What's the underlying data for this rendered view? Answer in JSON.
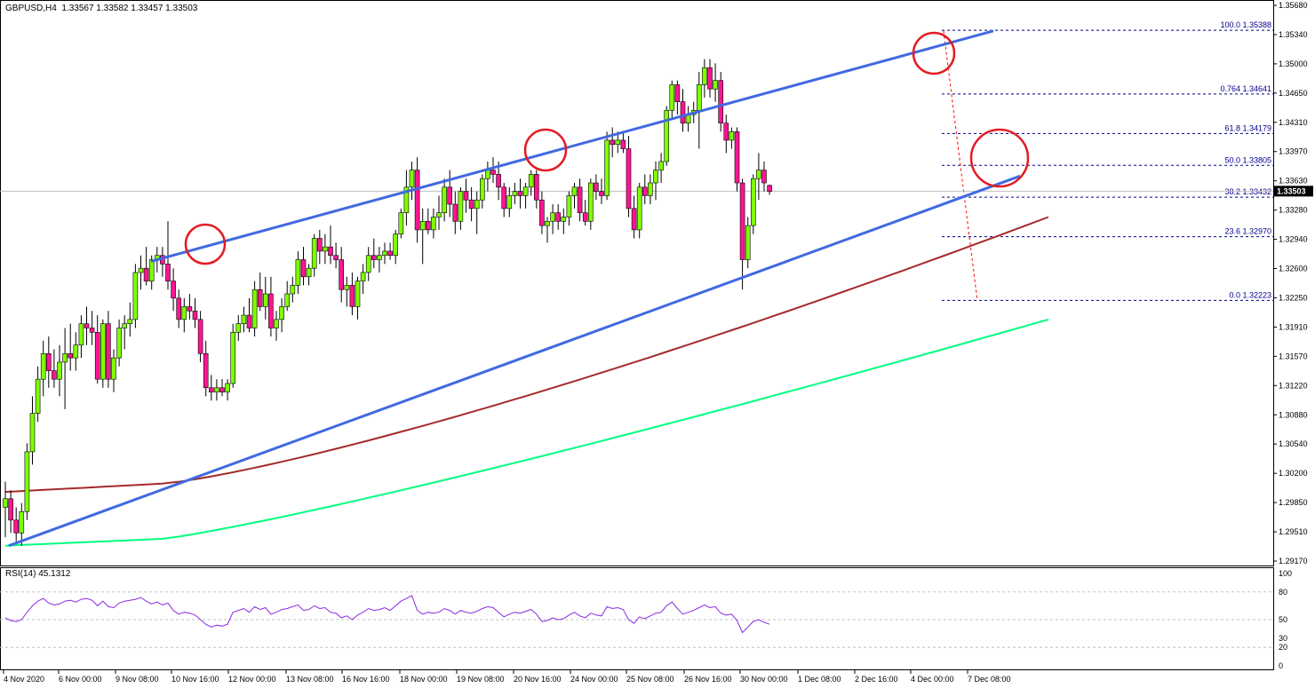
{
  "header": {
    "symbol": "GBPUSD,H4",
    "open": "1.33567",
    "high": "1.33582",
    "low": "1.33457",
    "close": "1.33503"
  },
  "rsi_panel": {
    "label": "RSI(14) 45.1312",
    "levels": [
      "100",
      "80",
      "50",
      "30",
      "20",
      "0"
    ]
  },
  "colors": {
    "bull": "#7fff00",
    "bear": "#ff1493",
    "channel": "#4169e1",
    "ma_fast": "#a52a2a",
    "ma_slow": "#00ff7f",
    "fib": "#00008b",
    "circle": "#e31b23",
    "rsi": "#8a2be2"
  },
  "chart_data": {
    "type": "candlestick",
    "symbol": "GBPUSD",
    "timeframe": "H4",
    "ylim": [
      1.2917,
      1.3568
    ],
    "y_ticks": [
      "1.35680",
      "1.35340",
      "1.35000",
      "1.34650",
      "1.34310",
      "1.33970",
      "1.33630",
      "1.33280",
      "1.32940",
      "1.32600",
      "1.32250",
      "1.31910",
      "1.31570",
      "1.31220",
      "1.30880",
      "1.30540",
      "1.30200",
      "1.29850",
      "1.29510",
      "1.29170"
    ],
    "current_price": "1.33503",
    "x_labels": [
      "4 Nov 2020",
      "6 Nov 00:00",
      "9 Nov 08:00",
      "10 Nov 16:00",
      "12 Nov 00:00",
      "13 Nov 08:00",
      "16 Nov 16:00",
      "18 Nov 00:00",
      "19 Nov 08:00",
      "20 Nov 16:00",
      "24 Nov 00:00",
      "25 Nov 08:00",
      "26 Nov 16:00",
      "30 Nov 00:00",
      "1 Dec 08:00",
      "2 Dec 16:00",
      "4 Dec 00:00",
      "7 Dec 08:00"
    ],
    "fibonacci": [
      {
        "label": "100.0 1.35388",
        "price": 1.35388
      },
      {
        "label": "0.764 1.34641",
        "price": 1.34641
      },
      {
        "label": "61.8 1.34179",
        "price": 1.34179
      },
      {
        "label": "50.0 1.33805",
        "price": 1.33805
      },
      {
        "label": "38.2 1.33432",
        "price": 1.33432
      },
      {
        "label": "23.6 1.32970",
        "price": 1.3297
      },
      {
        "label": "0.0 1.32223",
        "price": 1.32223
      }
    ],
    "candles": [
      [
        1.298,
        1.301,
        1.2945,
        1.299
      ],
      [
        1.299,
        1.3,
        1.295,
        1.2965
      ],
      [
        1.2965,
        1.298,
        1.294,
        1.295
      ],
      [
        1.295,
        1.2985,
        1.2935,
        1.2975
      ],
      [
        1.2975,
        1.3055,
        1.2965,
        1.3045
      ],
      [
        1.3045,
        1.311,
        1.303,
        1.309
      ],
      [
        1.309,
        1.3145,
        1.308,
        1.313
      ],
      [
        1.313,
        1.3175,
        1.311,
        1.316
      ],
      [
        1.316,
        1.318,
        1.312,
        1.314
      ],
      [
        1.314,
        1.3165,
        1.312,
        1.313
      ],
      [
        1.313,
        1.317,
        1.311,
        1.315
      ],
      [
        1.315,
        1.319,
        1.3095,
        1.316
      ],
      [
        1.316,
        1.3195,
        1.314,
        1.3155
      ],
      [
        1.3155,
        1.3185,
        1.314,
        1.317
      ],
      [
        1.317,
        1.3205,
        1.3155,
        1.3195
      ],
      [
        1.3195,
        1.3215,
        1.317,
        1.319
      ],
      [
        1.319,
        1.321,
        1.317,
        1.3185
      ],
      [
        1.3185,
        1.3205,
        1.3125,
        1.313
      ],
      [
        1.313,
        1.32,
        1.312,
        1.3195
      ],
      [
        1.3195,
        1.321,
        1.312,
        1.313
      ],
      [
        1.313,
        1.3165,
        1.3115,
        1.3155
      ],
      [
        1.3155,
        1.32,
        1.3145,
        1.319
      ],
      [
        1.319,
        1.3205,
        1.3165,
        1.3195
      ],
      [
        1.3195,
        1.322,
        1.318,
        1.32
      ],
      [
        1.32,
        1.3265,
        1.319,
        1.3255
      ],
      [
        1.3255,
        1.3275,
        1.3235,
        1.326
      ],
      [
        1.326,
        1.3285,
        1.324,
        1.3245
      ],
      [
        1.3245,
        1.3275,
        1.3235,
        1.327
      ],
      [
        1.327,
        1.3285,
        1.3255,
        1.3275
      ],
      [
        1.3275,
        1.3285,
        1.325,
        1.3265
      ],
      [
        1.3265,
        1.3315,
        1.3235,
        1.3245
      ],
      [
        1.3245,
        1.326,
        1.321,
        1.3225
      ],
      [
        1.3225,
        1.3235,
        1.319,
        1.32
      ],
      [
        1.32,
        1.3225,
        1.3185,
        1.3215
      ],
      [
        1.3215,
        1.323,
        1.32,
        1.321
      ],
      [
        1.321,
        1.3225,
        1.319,
        1.32
      ],
      [
        1.32,
        1.321,
        1.315,
        1.316
      ],
      [
        1.316,
        1.3175,
        1.311,
        1.312
      ],
      [
        1.312,
        1.3135,
        1.3105,
        1.3115
      ],
      [
        1.3115,
        1.313,
        1.3105,
        1.312
      ],
      [
        1.312,
        1.313,
        1.311,
        1.3115
      ],
      [
        1.3115,
        1.313,
        1.3105,
        1.3125
      ],
      [
        1.3125,
        1.3195,
        1.312,
        1.3185
      ],
      [
        1.3185,
        1.3205,
        1.3175,
        1.3195
      ],
      [
        1.3195,
        1.3215,
        1.3185,
        1.3205
      ],
      [
        1.3205,
        1.3225,
        1.3185,
        1.319
      ],
      [
        1.319,
        1.3245,
        1.318,
        1.3235
      ],
      [
        1.3235,
        1.3255,
        1.321,
        1.3215
      ],
      [
        1.3215,
        1.325,
        1.32,
        1.323
      ],
      [
        1.323,
        1.325,
        1.318,
        1.319
      ],
      [
        1.319,
        1.321,
        1.3175,
        1.32
      ],
      [
        1.32,
        1.3225,
        1.3185,
        1.3215
      ],
      [
        1.3215,
        1.3245,
        1.321,
        1.323
      ],
      [
        1.323,
        1.325,
        1.322,
        1.324
      ],
      [
        1.324,
        1.328,
        1.323,
        1.327
      ],
      [
        1.327,
        1.3285,
        1.324,
        1.325
      ],
      [
        1.325,
        1.3265,
        1.324,
        1.326
      ],
      [
        1.326,
        1.33,
        1.325,
        1.3295
      ],
      [
        1.3295,
        1.3305,
        1.3265,
        1.328
      ],
      [
        1.328,
        1.33,
        1.3265,
        1.3285
      ],
      [
        1.3285,
        1.331,
        1.3265,
        1.3275
      ],
      [
        1.3275,
        1.329,
        1.326,
        1.327
      ],
      [
        1.327,
        1.3285,
        1.322,
        1.3235
      ],
      [
        1.3235,
        1.325,
        1.3215,
        1.324
      ],
      [
        1.324,
        1.3255,
        1.3205,
        1.3215
      ],
      [
        1.3215,
        1.325,
        1.32,
        1.3245
      ],
      [
        1.3245,
        1.3265,
        1.323,
        1.3255
      ],
      [
        1.3255,
        1.3285,
        1.3245,
        1.3275
      ],
      [
        1.3275,
        1.3295,
        1.326,
        1.327
      ],
      [
        1.327,
        1.3285,
        1.3255,
        1.3275
      ],
      [
        1.3275,
        1.329,
        1.3265,
        1.328
      ],
      [
        1.328,
        1.329,
        1.327,
        1.3275
      ],
      [
        1.3275,
        1.3305,
        1.3265,
        1.33
      ],
      [
        1.33,
        1.333,
        1.3295,
        1.3325
      ],
      [
        1.3325,
        1.3375,
        1.331,
        1.3355
      ],
      [
        1.3355,
        1.3385,
        1.334,
        1.3375
      ],
      [
        1.3375,
        1.339,
        1.329,
        1.3305
      ],
      [
        1.3305,
        1.333,
        1.3265,
        1.3315
      ],
      [
        1.3315,
        1.333,
        1.33,
        1.3305
      ],
      [
        1.3305,
        1.333,
        1.3295,
        1.332
      ],
      [
        1.332,
        1.3345,
        1.3305,
        1.3325
      ],
      [
        1.3325,
        1.3365,
        1.3315,
        1.3355
      ],
      [
        1.3355,
        1.3375,
        1.332,
        1.3335
      ],
      [
        1.3335,
        1.335,
        1.33,
        1.3315
      ],
      [
        1.3315,
        1.3355,
        1.3305,
        1.335
      ],
      [
        1.335,
        1.3365,
        1.3325,
        1.334
      ],
      [
        1.334,
        1.3355,
        1.3315,
        1.333
      ],
      [
        1.333,
        1.335,
        1.33,
        1.334
      ],
      [
        1.334,
        1.337,
        1.333,
        1.3365
      ],
      [
        1.3365,
        1.3385,
        1.335,
        1.3375
      ],
      [
        1.3375,
        1.339,
        1.336,
        1.337
      ],
      [
        1.337,
        1.3385,
        1.334,
        1.3355
      ],
      [
        1.3355,
        1.336,
        1.332,
        1.333
      ],
      [
        1.333,
        1.3355,
        1.332,
        1.3345
      ],
      [
        1.3345,
        1.336,
        1.3335,
        1.335
      ],
      [
        1.335,
        1.3365,
        1.333,
        1.3345
      ],
      [
        1.3345,
        1.336,
        1.333,
        1.3355
      ],
      [
        1.3355,
        1.3375,
        1.3345,
        1.337
      ],
      [
        1.337,
        1.3375,
        1.333,
        1.334
      ],
      [
        1.334,
        1.335,
        1.33,
        1.331
      ],
      [
        1.331,
        1.332,
        1.329,
        1.3315
      ],
      [
        1.3315,
        1.3335,
        1.33,
        1.3325
      ],
      [
        1.3325,
        1.3335,
        1.3305,
        1.3315
      ],
      [
        1.3315,
        1.333,
        1.33,
        1.332
      ],
      [
        1.332,
        1.335,
        1.331,
        1.3345
      ],
      [
        1.3345,
        1.336,
        1.333,
        1.3355
      ],
      [
        1.3355,
        1.3365,
        1.3315,
        1.3325
      ],
      [
        1.3325,
        1.334,
        1.331,
        1.3315
      ],
      [
        1.3315,
        1.3365,
        1.3305,
        1.336
      ],
      [
        1.336,
        1.337,
        1.334,
        1.335
      ],
      [
        1.335,
        1.3365,
        1.3335,
        1.3345
      ],
      [
        1.3345,
        1.342,
        1.334,
        1.341
      ],
      [
        1.341,
        1.3425,
        1.339,
        1.3405
      ],
      [
        1.3405,
        1.342,
        1.3395,
        1.341
      ],
      [
        1.341,
        1.342,
        1.3395,
        1.34
      ],
      [
        1.34,
        1.3415,
        1.332,
        1.333
      ],
      [
        1.333,
        1.3345,
        1.3295,
        1.3305
      ],
      [
        1.3305,
        1.336,
        1.3295,
        1.3355
      ],
      [
        1.3355,
        1.337,
        1.3335,
        1.3345
      ],
      [
        1.3345,
        1.337,
        1.3335,
        1.336
      ],
      [
        1.336,
        1.3385,
        1.334,
        1.3375
      ],
      [
        1.3375,
        1.3395,
        1.336,
        1.3385
      ],
      [
        1.3385,
        1.345,
        1.338,
        1.3445
      ],
      [
        1.3445,
        1.348,
        1.3435,
        1.3475
      ],
      [
        1.3475,
        1.348,
        1.344,
        1.3455
      ],
      [
        1.3455,
        1.347,
        1.342,
        1.343
      ],
      [
        1.343,
        1.345,
        1.342,
        1.344
      ],
      [
        1.344,
        1.3455,
        1.343,
        1.3445
      ],
      [
        1.3445,
        1.349,
        1.34,
        1.3475
      ],
      [
        1.3475,
        1.3505,
        1.346,
        1.3495
      ],
      [
        1.3495,
        1.3505,
        1.346,
        1.347
      ],
      [
        1.347,
        1.35,
        1.3455,
        1.348
      ],
      [
        1.348,
        1.349,
        1.342,
        1.343
      ],
      [
        1.343,
        1.344,
        1.3395,
        1.341
      ],
      [
        1.341,
        1.3425,
        1.34,
        1.342
      ],
      [
        1.342,
        1.3425,
        1.335,
        1.336
      ],
      [
        1.336,
        1.3365,
        1.3235,
        1.327
      ],
      [
        1.327,
        1.332,
        1.326,
        1.331
      ],
      [
        1.331,
        1.337,
        1.33,
        1.3365
      ],
      [
        1.3365,
        1.3395,
        1.334,
        1.3375
      ],
      [
        1.3375,
        1.3385,
        1.335,
        1.336
      ],
      [
        1.3357,
        1.3358,
        1.3346,
        1.335
      ]
    ],
    "ma_fast": {
      "name": "",
      "start": 1.2998,
      "end": 1.332
    },
    "ma_slow": {
      "name": "",
      "start": 1.2935,
      "end": 1.32
    },
    "channel": {
      "lower_start": 1.2935,
      "lower_end": 1.3368,
      "upper_start": 1.3268,
      "upper_end": 1.3538
    },
    "rsi": {
      "value": 45.1312,
      "ylim": [
        0,
        100
      ],
      "levels": [
        80,
        50,
        20
      ],
      "values": [
        52,
        49,
        48,
        50,
        58,
        65,
        70,
        73,
        68,
        66,
        67,
        70,
        71,
        69,
        72,
        73,
        71,
        65,
        70,
        64,
        63,
        68,
        70,
        71,
        72,
        74,
        70,
        67,
        69,
        66,
        68,
        60,
        56,
        58,
        57,
        55,
        50,
        45,
        42,
        44,
        43,
        45,
        58,
        60,
        62,
        58,
        64,
        61,
        63,
        56,
        58,
        61,
        62,
        64,
        66,
        60,
        61,
        65,
        62,
        63,
        58,
        57,
        52,
        54,
        50,
        55,
        58,
        62,
        60,
        61,
        63,
        60,
        65,
        70,
        73,
        76,
        60,
        56,
        58,
        57,
        58,
        62,
        60,
        56,
        60,
        58,
        57,
        59,
        62,
        64,
        63,
        58,
        53,
        56,
        58,
        57,
        59,
        61,
        56,
        48,
        49,
        52,
        50,
        51,
        55,
        58,
        54,
        52,
        57,
        55,
        54,
        64,
        62,
        63,
        61,
        50,
        46,
        53,
        51,
        54,
        57,
        58,
        65,
        69,
        62,
        56,
        58,
        60,
        63,
        66,
        63,
        64,
        57,
        55,
        56,
        49,
        36,
        42,
        48,
        50,
        47,
        45
      ]
    }
  }
}
